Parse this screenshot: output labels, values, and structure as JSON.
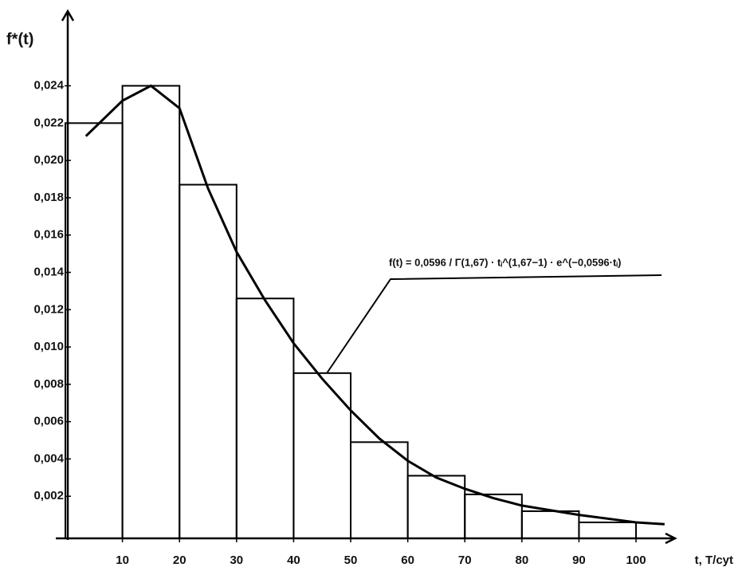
{
  "chart_data": {
    "type": "histogram",
    "y_label": "f*(t)",
    "x_label": "t, T/cyt",
    "annotation": "f(t) = 0,0596 / Γ(1,67) · tᵢ^(1,67−1) · e^(−0,0596·tᵢ)",
    "bins": [
      0,
      10,
      20,
      30,
      40,
      50,
      60,
      70,
      80,
      90,
      100
    ],
    "values": [
      0.022,
      0.024,
      0.0187,
      0.0126,
      0.0086,
      0.0049,
      0.0031,
      0.0021,
      0.0012,
      0.0006
    ],
    "color": "#000000",
    "curve": {
      "x": [
        3.6,
        10,
        15,
        20,
        25,
        30,
        35,
        40,
        45,
        50,
        55,
        60,
        65,
        70,
        75,
        80,
        90,
        100,
        105
      ],
      "values": [
        0.0213,
        0.0232,
        0.024,
        0.0228,
        0.0185,
        0.0151,
        0.0125,
        0.0102,
        0.0083,
        0.0066,
        0.0051,
        0.0039,
        0.003,
        0.0024,
        0.0019,
        0.0015,
        0.001,
        0.0006,
        0.0005
      ]
    },
    "xlim": [
      0,
      106
    ],
    "ylim": [
      0,
      0.028
    ],
    "xticks": [
      10,
      20,
      30,
      40,
      50,
      60,
      70,
      80,
      90,
      100
    ],
    "yticks": [
      {
        "value": 0.002,
        "label": "0,002"
      },
      {
        "value": 0.004,
        "label": "0,004"
      },
      {
        "value": 0.006,
        "label": "0,006"
      },
      {
        "value": 0.008,
        "label": "0,008"
      },
      {
        "value": 0.01,
        "label": "0,010"
      },
      {
        "value": 0.012,
        "label": "0,012"
      },
      {
        "value": 0.014,
        "label": "0,014"
      },
      {
        "value": 0.016,
        "label": "0,016"
      },
      {
        "value": 0.018,
        "label": "0,018"
      },
      {
        "value": 0.02,
        "label": "0,020"
      },
      {
        "value": 0.022,
        "label": "0,022"
      },
      {
        "value": 0.024,
        "label": "0,024"
      }
    ]
  }
}
